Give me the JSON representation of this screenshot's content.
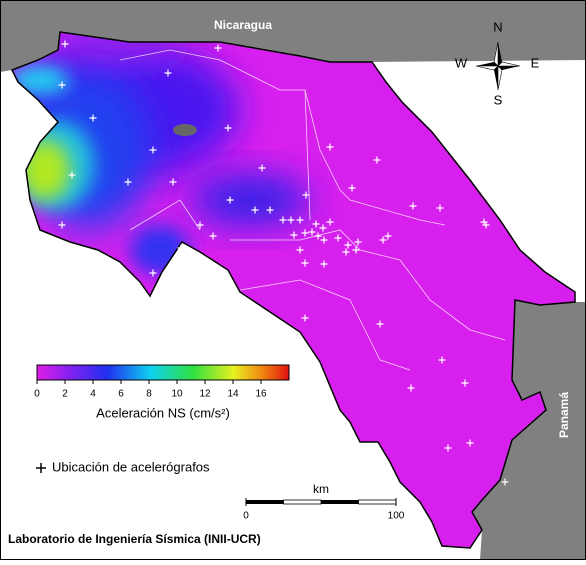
{
  "map": {
    "labels": {
      "nicaragua": "Nicaragua",
      "panama": "Panamá"
    },
    "compass": {
      "n": "N",
      "w": "W",
      "e": "E",
      "s": "S"
    },
    "colorbar": {
      "label": "Aceleración NS (cm/s²)",
      "range": [
        0,
        18
      ],
      "ticks": [
        0,
        2,
        4,
        6,
        8,
        10,
        12,
        14,
        16
      ]
    },
    "legend": "Ubicación de acelerógrafos",
    "scale": {
      "unit": "km",
      "range": [
        0,
        100
      ],
      "ticks": [
        0,
        100
      ]
    },
    "credit": "Laboratorio de Ingeniería Sísmica (INII-UCR)"
  }
}
